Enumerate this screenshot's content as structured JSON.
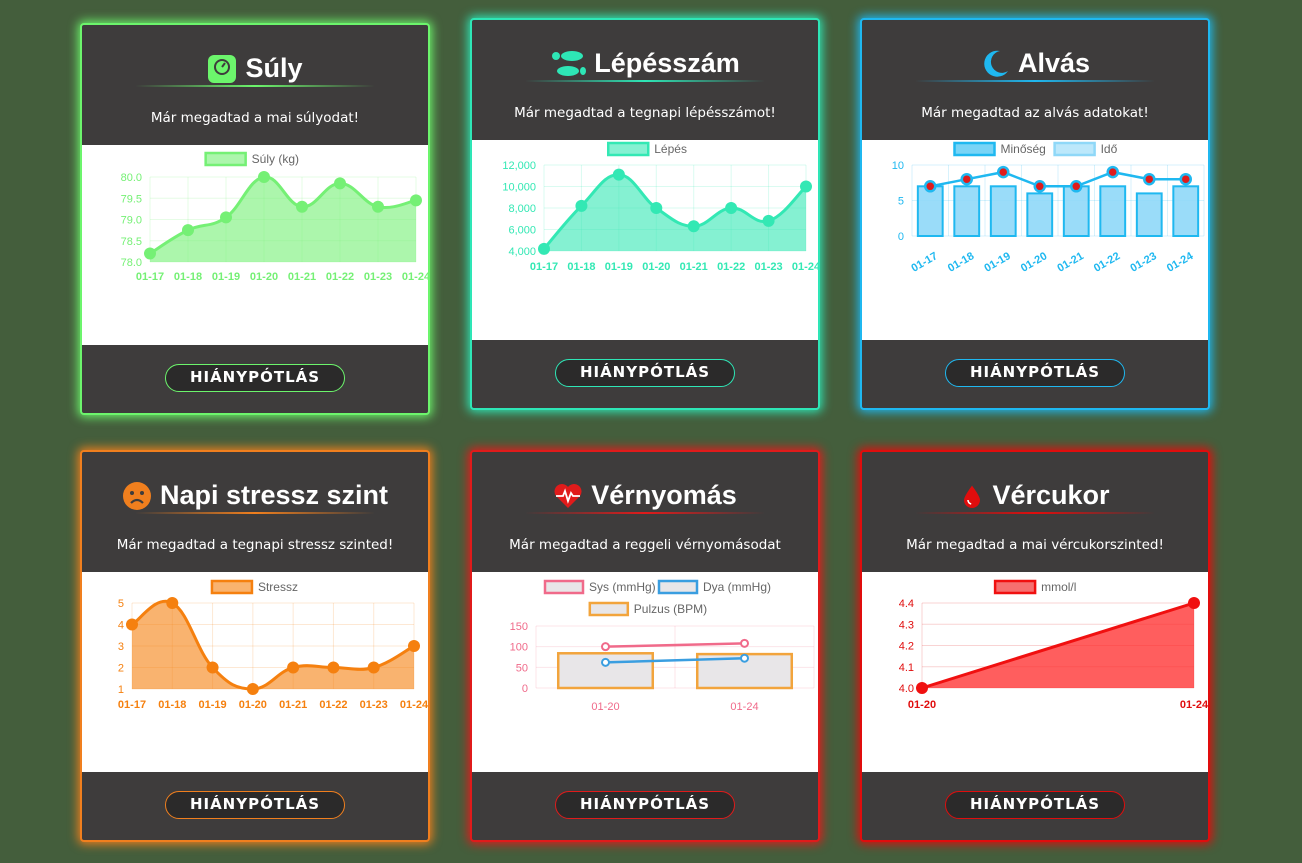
{
  "cards": [
    {
      "id": "weight",
      "title": "Súly",
      "icon": "scale-icon",
      "message": "Már megadtad a mai súlyodat!",
      "button_label": "HIÁNYPÓTLÁS",
      "accent": "#6cf56c",
      "chart_data": {
        "type": "area",
        "categories": [
          "01-17",
          "01-18",
          "01-19",
          "01-20",
          "01-21",
          "01-22",
          "01-23",
          "01-24"
        ],
        "series": [
          {
            "name": "Súly (kg)",
            "values": [
              78.2,
              78.75,
              79.05,
              80.0,
              79.3,
              79.85,
              79.3,
              79.45
            ],
            "color": "#75f075"
          }
        ],
        "ylim": [
          78.0,
          80.0
        ],
        "yticks": [
          "80.0",
          "79.5",
          "79.0",
          "78.5",
          "78.0"
        ],
        "ytick_values": [
          80.0,
          79.5,
          79.0,
          78.5,
          78.0
        ]
      }
    },
    {
      "id": "steps",
      "title": "Lépésszám",
      "icon": "footprints-icon",
      "message": "Már megadtad a tegnapi lépésszámot!",
      "button_label": "HIÁNYPÓTLÁS",
      "accent": "#2ee6b6",
      "chart_data": {
        "type": "area",
        "categories": [
          "01-17",
          "01-18",
          "01-19",
          "01-20",
          "01-21",
          "01-22",
          "01-23",
          "01-24"
        ],
        "series": [
          {
            "name": "Lépés",
            "values": [
              4200,
              8200,
              11100,
              8000,
              6300,
              8000,
              6800,
              10000
            ],
            "color": "#33e8b4"
          }
        ],
        "ylim": [
          4000,
          12000
        ],
        "yticks": [
          "12,000",
          "10,000",
          "8,000",
          "6,000",
          "4,000"
        ],
        "ytick_values": [
          12000,
          10000,
          8000,
          6000,
          4000
        ]
      }
    },
    {
      "id": "sleep",
      "title": "Alvás",
      "icon": "moon-icon",
      "message": "Már megadtad az alvás adatokat!",
      "button_label": "HIÁNYPÓTLÁS",
      "accent": "#1fb8f0",
      "chart_data": {
        "type": "bar",
        "categories": [
          "01-17",
          "01-18",
          "01-19",
          "01-20",
          "01-21",
          "01-22",
          "01-23",
          "01-24"
        ],
        "series": [
          {
            "name": "Minőség",
            "type": "line",
            "values": [
              7,
              8,
              9,
              7,
              7,
              9,
              8,
              8
            ],
            "color": "#1fb8f0"
          },
          {
            "name": "Idő",
            "type": "bar",
            "values": [
              7,
              7,
              7,
              6,
              7,
              7,
              6,
              7
            ],
            "color": "#8fd8f8"
          }
        ],
        "ylim": [
          0,
          10
        ],
        "yticks": [
          "10",
          "5",
          "0"
        ],
        "ytick_values": [
          10,
          5,
          0
        ]
      }
    },
    {
      "id": "stress",
      "title": "Napi stressz szint",
      "icon": "sad-face-icon",
      "message": "Már megadtad a tegnapi stressz szinted!",
      "button_label": "HIÁNYPÓTLÁS",
      "accent": "#f07f1e",
      "chart_data": {
        "type": "area",
        "categories": [
          "01-17",
          "01-18",
          "01-19",
          "01-20",
          "01-21",
          "01-22",
          "01-23",
          "01-24"
        ],
        "series": [
          {
            "name": "Stressz",
            "values": [
              4,
              5,
              2,
              1,
              2,
              2,
              2,
              3
            ],
            "color": "#f5800f"
          }
        ],
        "ylim": [
          1,
          5
        ],
        "yticks": [
          "5",
          "4",
          "3",
          "2",
          "1"
        ],
        "ytick_values": [
          5,
          4,
          3,
          2,
          1
        ]
      }
    },
    {
      "id": "bloodpressure",
      "title": "Vérnyomás",
      "icon": "heartbeat-icon",
      "message": "Már megadtad a reggeli vérnyomásodat",
      "button_label": "HIÁNYPÓTLÁS",
      "accent": "#e01b1b",
      "chart_data": {
        "type": "bar",
        "categories": [
          "01-20",
          "01-24"
        ],
        "series": [
          {
            "name": "Sys (mmHg)",
            "type": "line",
            "values": [
              100,
              108
            ],
            "color": "#f06a8a"
          },
          {
            "name": "Dya (mmHg)",
            "type": "line",
            "values": [
              62,
              72
            ],
            "color": "#3a9ee0"
          },
          {
            "name": "Pulzus (BPM)",
            "type": "bar",
            "values": [
              84,
              82
            ],
            "color": "#f2a43c"
          }
        ],
        "ylim": [
          0,
          150
        ],
        "yticks": [
          "150",
          "100",
          "50",
          "0"
        ],
        "ytick_values": [
          150,
          100,
          50,
          0
        ]
      }
    },
    {
      "id": "bloodsugar",
      "title": "Vércukor",
      "icon": "blood-drop-icon",
      "message": "Már megadtad a mai vércukorszinted!",
      "button_label": "HIÁNYPÓTLÁS",
      "accent": "#e00d0d",
      "chart_data": {
        "type": "area",
        "categories": [
          "01-20",
          "01-24"
        ],
        "series": [
          {
            "name": "mmol/l",
            "values": [
              4.0,
              4.4
            ],
            "color": "#f01010"
          }
        ],
        "ylim": [
          4.0,
          4.4
        ],
        "yticks": [
          "4.4",
          "4.3",
          "4.2",
          "4.1",
          "4.0"
        ],
        "ytick_values": [
          4.4,
          4.3,
          4.2,
          4.1,
          4.0
        ]
      }
    }
  ]
}
